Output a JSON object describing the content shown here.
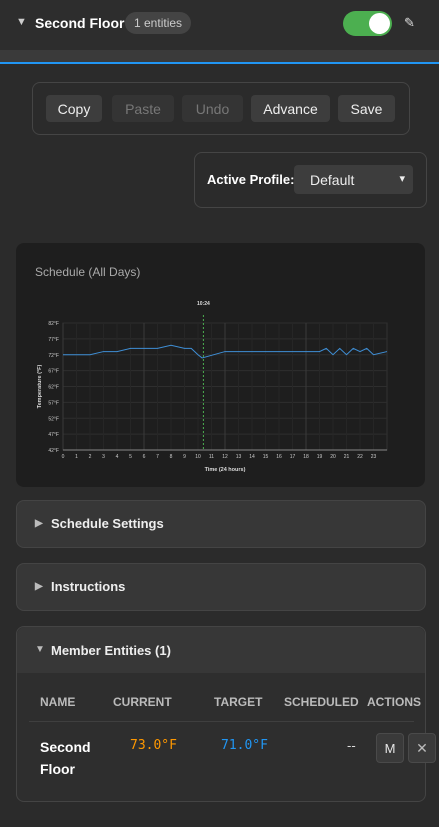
{
  "header": {
    "title": "Second Floor",
    "badge": "1 entities"
  },
  "toolbar": {
    "buttons": [
      "Copy",
      "Paste",
      "Undo",
      "Advance",
      "Save"
    ]
  },
  "profile": {
    "label": "Active Profile:",
    "selected": "Default"
  },
  "chart_data": {
    "type": "line",
    "title": "Schedule (All Days)",
    "ylabel": "Temperature (°F)",
    "xlabel": "Time (24 hours)",
    "x": [
      0,
      1,
      2,
      3,
      4,
      5,
      6,
      7,
      8,
      9,
      9.5,
      10,
      10.3,
      12,
      15,
      18,
      19,
      19.5,
      20,
      20.5,
      21,
      21.5,
      22,
      22.5,
      23,
      24
    ],
    "series": [
      {
        "name": "Schedule",
        "color": "#3f8fd6",
        "values": [
          72,
          72,
          72,
          73,
          73,
          74,
          74,
          74,
          75,
          74,
          74,
          72,
          71,
          73,
          73,
          73,
          73,
          74,
          72,
          74,
          72,
          74,
          73,
          74,
          72,
          73
        ]
      }
    ],
    "xlim": [
      0,
      24
    ],
    "xticks": [
      0,
      1,
      2,
      3,
      4,
      5,
      6,
      7,
      8,
      9,
      10,
      11,
      12,
      13,
      14,
      15,
      16,
      17,
      18,
      19,
      20,
      21,
      22,
      23
    ],
    "ylim": [
      42,
      82
    ],
    "yticks": [
      {
        "value": 42,
        "label": "42°F"
      },
      {
        "value": 47,
        "label": "47°F"
      },
      {
        "value": 52,
        "label": "52°F"
      },
      {
        "value": 57,
        "label": "57°F"
      },
      {
        "value": 62,
        "label": "62°F"
      },
      {
        "value": 67,
        "label": "67°F"
      },
      {
        "value": 72,
        "label": "72°F"
      },
      {
        "value": 77,
        "label": "77°F"
      },
      {
        "value": 82,
        "label": "82°F"
      }
    ],
    "grid": true,
    "now_marker": {
      "label": "10:24",
      "x": 10.4,
      "color": "#4caf50"
    }
  },
  "sections": [
    "Schedule Settings",
    "Instructions"
  ],
  "members": {
    "title": "Member Entities (1)",
    "columns": [
      "NAME",
      "CURRENT",
      "TARGET",
      "SCHEDULED",
      "ACTIONS"
    ],
    "rows": [
      {
        "name": "Second Floor",
        "current": "73.0°F",
        "target": "71.0°F",
        "scheduled": "--",
        "actions": [
          "M",
          "✕"
        ]
      }
    ]
  }
}
